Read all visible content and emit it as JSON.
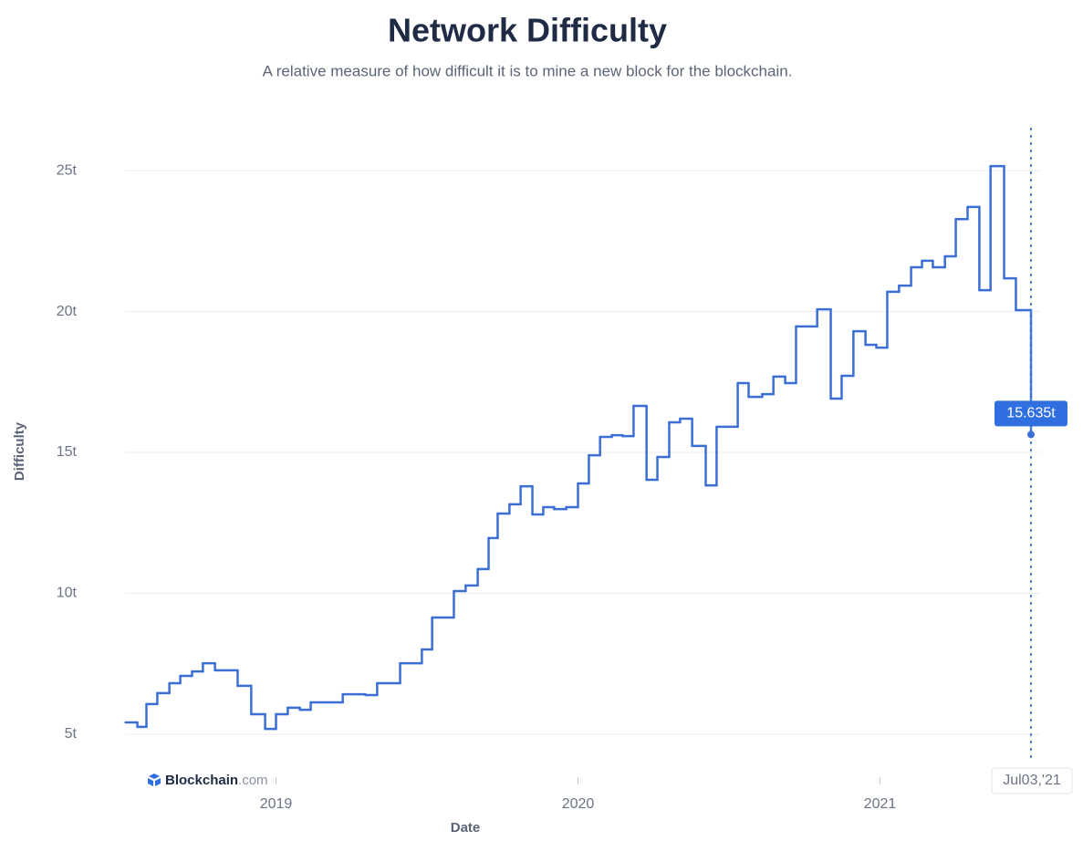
{
  "chart_data": {
    "type": "step-line",
    "title": "Network Difficulty",
    "subtitle": "A relative measure of how difficult it is to mine a new block for the blockchain.",
    "x_label": "Date",
    "y_label": "Difficulty",
    "brand": {
      "name": "Blockchain",
      "suffix": ".com"
    },
    "annotations": [
      {
        "text": "15.635t"
      },
      {
        "text": "Jul03,'21"
      }
    ],
    "xlim": [
      2018.5,
      2021.5
    ],
    "xticks": [
      2019,
      2020,
      2021
    ],
    "ylim": [
      4.06,
      26.2
    ],
    "yticks": [
      {
        "value": 5,
        "label": "5t"
      },
      {
        "value": 10,
        "label": "10t"
      },
      {
        "value": 15,
        "label": "15t"
      },
      {
        "value": 20,
        "label": "20t"
      },
      {
        "value": 25,
        "label": "25t"
      }
    ],
    "grid": true,
    "series": [
      {
        "name": "Difficulty",
        "color": "#3b6fd6",
        "x": [
          2018.502,
          2018.541,
          2018.571,
          2018.607,
          2018.647,
          2018.683,
          2018.722,
          2018.758,
          2018.798,
          2018.873,
          2018.918,
          2018.964,
          2019.0,
          2019.039,
          2019.079,
          2019.115,
          2019.221,
          2019.296,
          2019.335,
          2019.411,
          2019.483,
          2019.517,
          2019.589,
          2019.628,
          2019.668,
          2019.704,
          2019.734,
          2019.773,
          2019.81,
          2019.849,
          2019.885,
          2019.921,
          2019.961,
          2020.0,
          2020.036,
          2020.073,
          2020.112,
          2020.148,
          2020.184,
          2020.227,
          2020.263,
          2020.302,
          2020.338,
          2020.378,
          2020.423,
          2020.459,
          2020.529,
          2020.565,
          2020.61,
          2020.647,
          2020.686,
          2020.722,
          2020.792,
          2020.837,
          2020.873,
          2020.912,
          2020.952,
          2020.988,
          2021.024,
          2021.063,
          2021.103,
          2021.139,
          2021.175,
          2021.215,
          2021.251,
          2021.29,
          2021.329,
          2021.366,
          2021.411,
          2021.45,
          2021.5
        ],
        "values": [
          5.42,
          5.26,
          6.07,
          6.46,
          6.81,
          7.07,
          7.23,
          7.52,
          7.27,
          6.72,
          5.71,
          5.19,
          5.71,
          5.94,
          5.87,
          6.13,
          6.42,
          6.39,
          6.81,
          7.52,
          8.01,
          9.14,
          10.08,
          10.28,
          10.86,
          11.96,
          12.83,
          13.16,
          13.8,
          12.8,
          13.06,
          12.99,
          13.06,
          13.9,
          14.9,
          15.55,
          15.61,
          15.58,
          16.65,
          14.03,
          14.84,
          16.07,
          16.2,
          15.23,
          13.83,
          15.91,
          17.46,
          16.97,
          17.07,
          17.69,
          17.46,
          19.47,
          20.08,
          16.91,
          17.72,
          19.3,
          18.82,
          18.72,
          20.7,
          20.92,
          21.57,
          21.8,
          21.57,
          21.96,
          23.28,
          23.71,
          20.76,
          25.16,
          21.18,
          20.05,
          15.635
        ]
      }
    ]
  }
}
